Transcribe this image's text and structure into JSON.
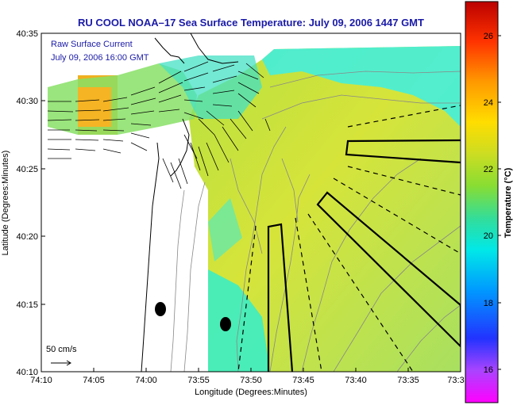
{
  "title": "RU COOL  NOAA–17  Sea Surface Temperature:  July 09, 2006 1447 GMT",
  "legend": {
    "line1": "Raw Surface Current",
    "line2": "July 09, 2006 16:00 GMT"
  },
  "scale_bar": {
    "label": "50 cm/s"
  },
  "axes": {
    "xlabel": "Longitude (Degrees:Minutes)",
    "ylabel": "Latitude (Degrees:Minutes)",
    "x_ticks": [
      "74:10",
      "74:05",
      "74:00",
      "73:55",
      "73:50",
      "73:45",
      "73:40",
      "73:35",
      "73:3"
    ],
    "y_ticks": [
      "40:35",
      "40:30",
      "40:25",
      "40:20",
      "40:15",
      "40:10"
    ]
  },
  "colorbar": {
    "label": "Temperature (°C)",
    "ticks": [
      "26",
      "24",
      "22",
      "20",
      "18",
      "16"
    ],
    "colors": [
      "#ff00ff",
      "#6633ff",
      "#0033ff",
      "#00aaff",
      "#00eeee",
      "#33dd99",
      "#99dd33",
      "#eedd22",
      "#ff9900",
      "#ff3300",
      "#cc0000"
    ]
  },
  "map_colors": {
    "land": "#ffffff",
    "sst_main": "#c8e33c",
    "sst_cyan": "#33eedd",
    "sst_green": "#7fdd66",
    "sst_warm": "#f0b020",
    "coast": "#000000",
    "bathymetry": "#888888"
  }
}
